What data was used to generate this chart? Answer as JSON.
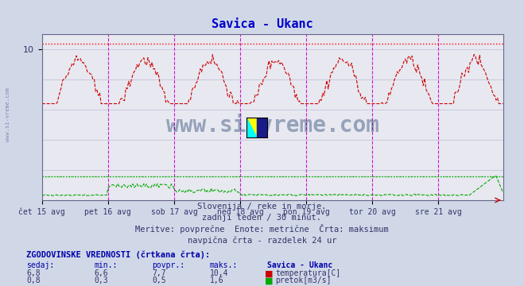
{
  "title": "Savica - Ukanc",
  "title_color": "#0000cc",
  "bg_color": "#d0d8e8",
  "plot_bg_color": "#e8e8f0",
  "fig_width": 6.59,
  "fig_height": 3.6,
  "dpi": 100,
  "x_tick_labels": [
    "čet 15 avg",
    "pet 16 avg",
    "sob 17 avg",
    "ned 18 avg",
    "pon 19 avg",
    "tor 20 avg",
    "sre 21 avg"
  ],
  "x_tick_positions": [
    0,
    48,
    96,
    144,
    192,
    240,
    288
  ],
  "n_points": 336,
  "temp_color": "#cc0000",
  "flow_color": "#00aa00",
  "max_line_color": "#ff0000",
  "max_line_style": "dotted",
  "vline_color": "#cc00cc",
  "vline_style": "dashed",
  "grid_color": "#aaaacc",
  "ylabel_color": "#555599",
  "temp_max": 10.4,
  "temp_min": 6.6,
  "temp_avg": 7.7,
  "temp_current": 6.8,
  "flow_max": 1.6,
  "flow_min": 0.3,
  "flow_avg": 0.5,
  "flow_current": 0.8,
  "ylim_min": 0,
  "ylim_max": 11.0,
  "watermark": "www.si-vreme.com",
  "watermark_color": "#1a3a6a",
  "subtitle1": "Slovenija / reke in morje.",
  "subtitle2": "zadnji teden / 30 minut.",
  "subtitle3": "Meritve: povprečne  Enote: metrične  Črta: maksimum",
  "subtitle4": "navpična črta - razdelek 24 ur",
  "table_title": "ZGODOVINSKE VREDNOSTI (črtkana črta):",
  "col_headers": [
    "sedaj:",
    "min.:",
    "povpr.:",
    "maks.:",
    "Savica - Ukanc"
  ],
  "row1_vals": [
    "6,8",
    "6,6",
    "7,7",
    "10,4"
  ],
  "row1_label": "temperatura[C]",
  "row2_vals": [
    "0,8",
    "0,3",
    "0,5",
    "1,6"
  ],
  "row2_label": "pretok[m3/s]",
  "sidebar_text": "www.si-vreme.com",
  "sidebar_color": "#666699"
}
